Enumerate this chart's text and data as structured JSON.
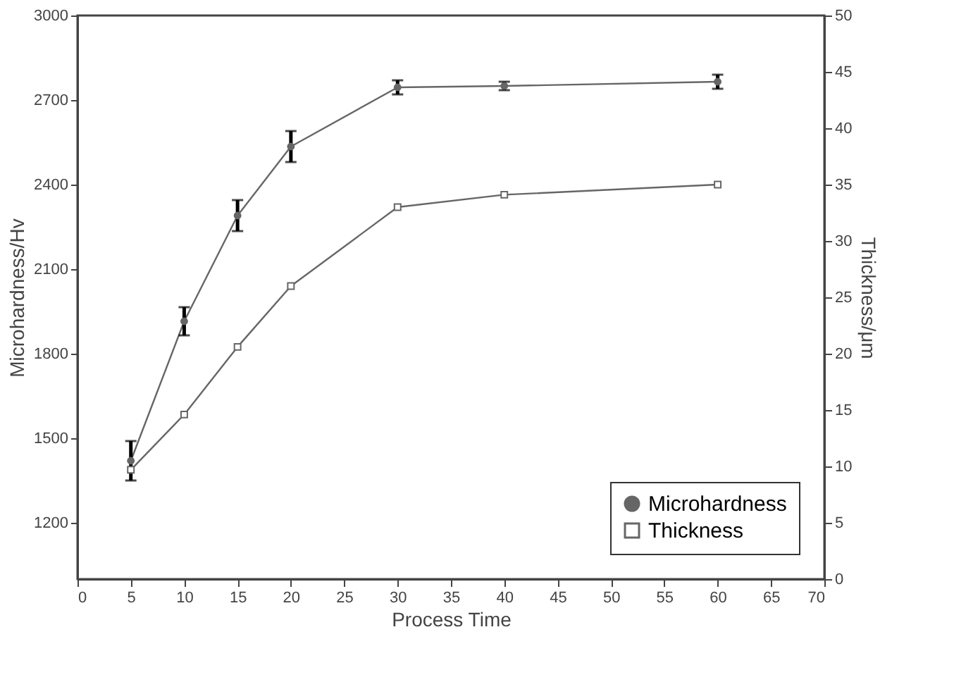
{
  "chart_data": {
    "type": "line",
    "xlabel": "Process Time",
    "ylabel": "Microhardness/Hv",
    "y2label": "Thickness/μm",
    "x": [
      5,
      10,
      15,
      20,
      30,
      40,
      60
    ],
    "series": [
      {
        "name": "Microhardness",
        "color": "#666666",
        "marker": "circle",
        "values": [
          1420,
          1915,
          2290,
          2535,
          2745,
          2750,
          2765
        ],
        "errors": [
          70,
          50,
          55,
          55,
          25,
          15,
          25
        ]
      },
      {
        "name": "Thickness",
        "color": "#666666",
        "marker": "square",
        "axis": "y2",
        "values": [
          9.7,
          14.6,
          20.6,
          26,
          33,
          34.1,
          35
        ]
      }
    ],
    "xlim": [
      0,
      70
    ],
    "xticks": [
      0,
      5,
      10,
      15,
      20,
      25,
      30,
      35,
      40,
      45,
      50,
      55,
      60,
      65,
      70
    ],
    "ylim": [
      1000,
      3000
    ],
    "yticks": [
      1200,
      1500,
      1800,
      2100,
      2400,
      2700,
      3000
    ],
    "y2lim": [
      0,
      50
    ],
    "y2ticks": [
      0,
      5,
      10,
      15,
      20,
      25,
      30,
      35,
      40,
      45,
      50
    ],
    "grid": false,
    "legend": "bottom right",
    "line_style": "solid"
  }
}
